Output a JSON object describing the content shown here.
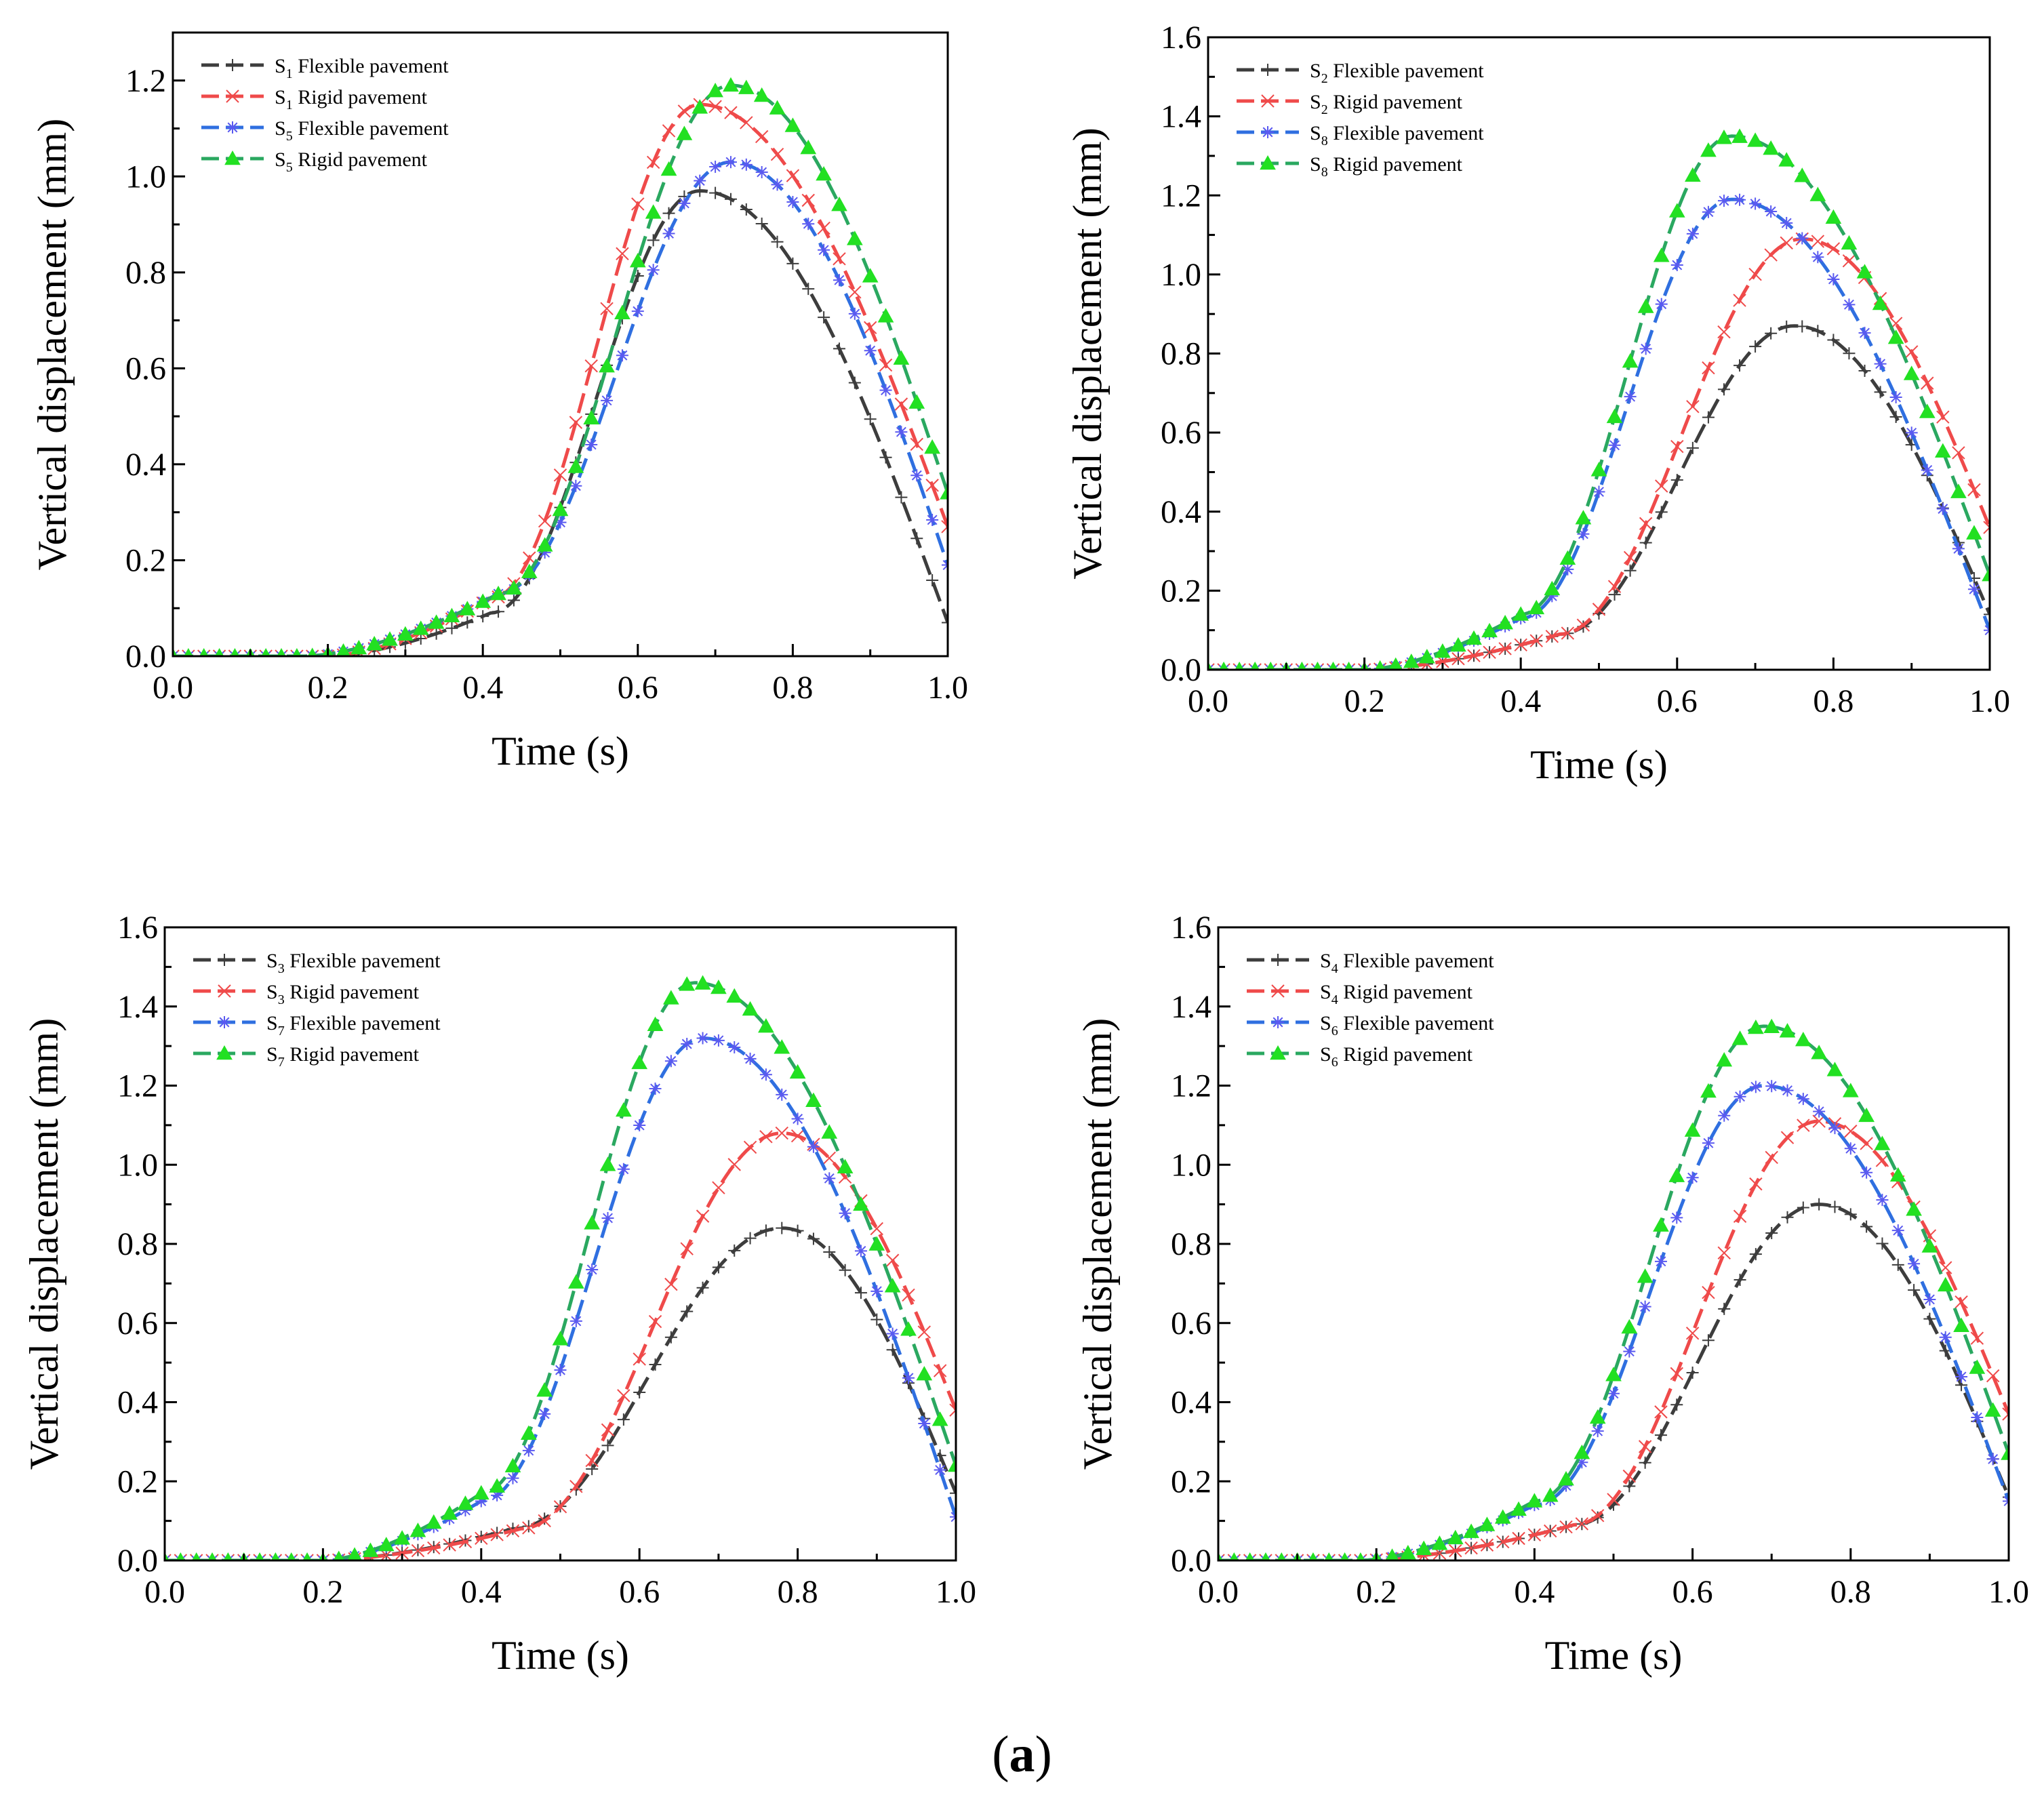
{
  "caption": {
    "open": "(",
    "letter": "a",
    "close": ")"
  },
  "colors": {
    "flexible_dark": "#3d3d3d",
    "rigid_red": "#ef4a4a",
    "flexible_blue": "#2f6fe0",
    "rigid_green": "#2aa860",
    "marker_blue": "#5a5af0",
    "marker_green": "#22e022"
  },
  "chart_data": [
    {
      "type": "line",
      "panel": "top-left",
      "xlabel": "Time (s)",
      "ylabel": "Vertical displacement (mm)",
      "xlim": [
        0,
        1.0
      ],
      "ylim": [
        0,
        1.3
      ],
      "xticks": [
        "0.0",
        "0.2",
        "0.4",
        "0.6",
        "0.8",
        "1.0"
      ],
      "yticks": [
        "0.0",
        "0.2",
        "0.4",
        "0.6",
        "0.8",
        "1.0",
        "1.2"
      ],
      "legend_position": "top-left",
      "series": [
        {
          "name": "S1 Flexible pavement",
          "sub": "1",
          "label": "Flexible pavement",
          "style": "flex_dark",
          "onset": 0.2,
          "ramp_end": 0.41,
          "ramp_value": 0.09,
          "peak_t": 0.68,
          "peak": 0.97,
          "end_value": 0.07
        },
        {
          "name": "S1 Rigid pavement",
          "sub": "1",
          "label": "Rigid pavement",
          "style": "rigid_red",
          "onset": 0.2,
          "ramp_end": 0.41,
          "ramp_value": 0.12,
          "peak_t": 0.68,
          "peak": 1.15,
          "end_value": 0.27
        },
        {
          "name": "S5 Flexible pavement",
          "sub": "5",
          "label": "Flexible pavement",
          "style": "flex_blue",
          "onset": 0.17,
          "ramp_end": 0.42,
          "ramp_value": 0.13,
          "peak_t": 0.72,
          "peak": 1.03,
          "end_value": 0.19
        },
        {
          "name": "S5 Rigid pavement",
          "sub": "5",
          "label": "Rigid pavement",
          "style": "rigid_green",
          "onset": 0.17,
          "ramp_end": 0.42,
          "ramp_value": 0.13,
          "peak_t": 0.72,
          "peak": 1.19,
          "end_value": 0.34
        }
      ]
    },
    {
      "type": "line",
      "panel": "top-right",
      "xlabel": "Time (s)",
      "ylabel": "Vertical displacement (mm)",
      "xlim": [
        0,
        1.0
      ],
      "ylim": [
        0,
        1.6
      ],
      "xticks": [
        "0.0",
        "0.2",
        "0.4",
        "0.6",
        "0.8",
        "1.0"
      ],
      "yticks": [
        "0.0",
        "0.2",
        "0.4",
        "0.6",
        "0.8",
        "1.0",
        "1.2",
        "1.4",
        "1.6"
      ],
      "legend_position": "top-left",
      "series": [
        {
          "name": "S2 Flexible pavement",
          "sub": "2",
          "label": "Flexible pavement",
          "style": "flex_dark",
          "onset": 0.2,
          "ramp_end": 0.45,
          "ramp_value": 0.09,
          "peak_t": 0.75,
          "peak": 0.87,
          "end_value": 0.14
        },
        {
          "name": "S2 Rigid pavement",
          "sub": "2",
          "label": "Rigid pavement",
          "style": "rigid_red",
          "onset": 0.2,
          "ramp_end": 0.45,
          "ramp_value": 0.09,
          "peak_t": 0.76,
          "peak": 1.09,
          "end_value": 0.36
        },
        {
          "name": "S8 Flexible pavement",
          "sub": "8",
          "label": "Flexible pavement",
          "style": "flex_blue",
          "onset": 0.2,
          "ramp_end": 0.4,
          "ramp_value": 0.13,
          "peak_t": 0.67,
          "peak": 1.19,
          "end_value": 0.1
        },
        {
          "name": "S8 Rigid pavement",
          "sub": "8",
          "label": "Rigid pavement",
          "style": "rigid_green",
          "onset": 0.2,
          "ramp_end": 0.4,
          "ramp_value": 0.14,
          "peak_t": 0.67,
          "peak": 1.35,
          "end_value": 0.24
        }
      ]
    },
    {
      "type": "line",
      "panel": "bottom-left",
      "xlabel": "Time (s)",
      "ylabel": "Vertical displacement (mm)",
      "xlim": [
        0,
        1.0
      ],
      "ylim": [
        0,
        1.6
      ],
      "xticks": [
        "0.0",
        "0.2",
        "0.4",
        "0.6",
        "0.8",
        "1.0"
      ],
      "yticks": [
        "0.0",
        "0.2",
        "0.4",
        "0.6",
        "0.8",
        "1.0",
        "1.2",
        "1.4",
        "1.6"
      ],
      "legend_position": "top-left",
      "series": [
        {
          "name": "S3 Flexible pavement",
          "sub": "3",
          "label": "Flexible pavement",
          "style": "flex_dark",
          "onset": 0.2,
          "ramp_end": 0.44,
          "ramp_value": 0.08,
          "peak_t": 0.78,
          "peak": 0.84,
          "end_value": 0.17
        },
        {
          "name": "S3 Rigid pavement",
          "sub": "3",
          "label": "Rigid pavement",
          "style": "rigid_red",
          "onset": 0.2,
          "ramp_end": 0.45,
          "ramp_value": 0.08,
          "peak_t": 0.78,
          "peak": 1.08,
          "end_value": 0.38
        },
        {
          "name": "S7 Flexible pavement",
          "sub": "7",
          "label": "Flexible pavement",
          "style": "flex_blue",
          "onset": 0.2,
          "ramp_end": 0.4,
          "ramp_value": 0.15,
          "peak_t": 0.68,
          "peak": 1.32,
          "end_value": 0.11
        },
        {
          "name": "S7 Rigid pavement",
          "sub": "7",
          "label": "Rigid pavement",
          "style": "rigid_green",
          "onset": 0.2,
          "ramp_end": 0.4,
          "ramp_value": 0.17,
          "peak_t": 0.67,
          "peak": 1.46,
          "end_value": 0.24
        }
      ]
    },
    {
      "type": "line",
      "panel": "bottom-right",
      "xlabel": "Time (s)",
      "ylabel": "Vertical displacement (mm)",
      "xlim": [
        0,
        1.0
      ],
      "ylim": [
        0,
        1.6
      ],
      "xticks": [
        "0.0",
        "0.2",
        "0.4",
        "0.6",
        "0.8",
        "1.0"
      ],
      "yticks": [
        "0.0",
        "0.2",
        "0.4",
        "0.6",
        "0.8",
        "1.0",
        "1.2",
        "1.4",
        "1.6"
      ],
      "legend_position": "top-left",
      "series": [
        {
          "name": "S4 Flexible pavement",
          "sub": "4",
          "label": "Flexible pavement",
          "style": "flex_dark",
          "onset": 0.18,
          "ramp_end": 0.45,
          "ramp_value": 0.09,
          "peak_t": 0.76,
          "peak": 0.9,
          "end_value": 0.16
        },
        {
          "name": "S4 Rigid pavement",
          "sub": "4",
          "label": "Rigid pavement",
          "style": "rigid_red",
          "onset": 0.18,
          "ramp_end": 0.45,
          "ramp_value": 0.09,
          "peak_t": 0.76,
          "peak": 1.11,
          "end_value": 0.37
        },
        {
          "name": "S6 Flexible pavement",
          "sub": "6",
          "label": "Flexible pavement",
          "style": "flex_blue",
          "onset": 0.18,
          "ramp_end": 0.4,
          "ramp_value": 0.14,
          "peak_t": 0.69,
          "peak": 1.2,
          "end_value": 0.15
        },
        {
          "name": "S6 Rigid pavement",
          "sub": "6",
          "label": "Rigid pavement",
          "style": "rigid_green",
          "onset": 0.18,
          "ramp_end": 0.4,
          "ramp_value": 0.15,
          "peak_t": 0.69,
          "peak": 1.35,
          "end_value": 0.27
        }
      ]
    }
  ]
}
